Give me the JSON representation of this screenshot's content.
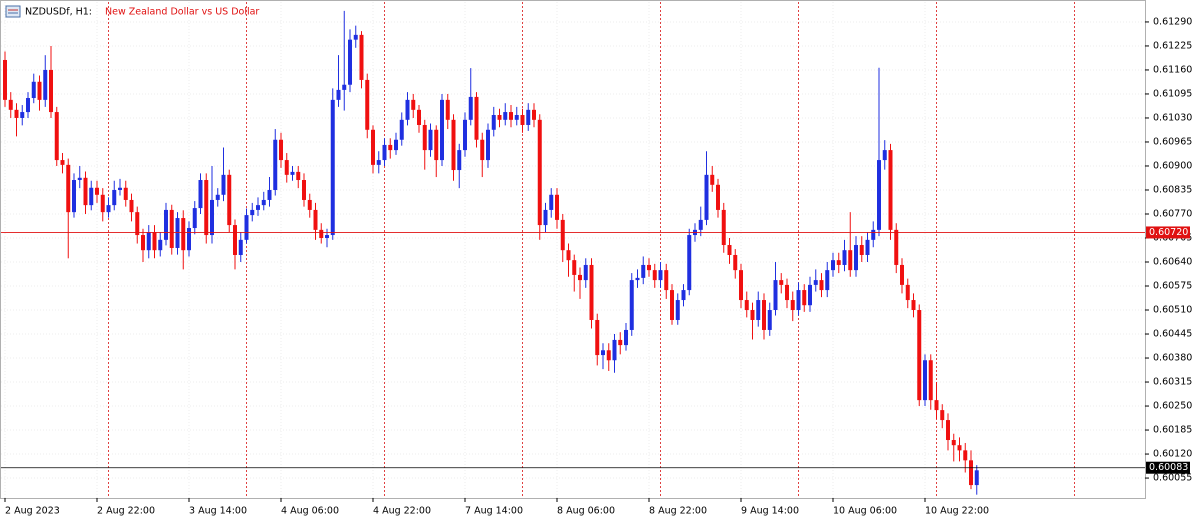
{
  "chart_data": {
    "type": "candlestick",
    "symbol": "NZDUSDf, H1:",
    "title": "New Zealand Dollar vs US Dollar",
    "bull_color": "#1f2fe0",
    "bear_color": "#f01010",
    "grid": true,
    "categories": [
      "2 Aug 2023",
      null,
      null,
      null,
      null,
      null,
      null,
      null,
      null,
      null,
      null,
      null,
      null,
      null,
      null,
      null,
      "2 Aug 22:00",
      null,
      null,
      null,
      null,
      null,
      null,
      null,
      null,
      null,
      null,
      null,
      null,
      null,
      null,
      null,
      "3 Aug 14:00",
      null,
      null,
      null,
      null,
      null,
      null,
      null,
      null,
      null,
      null,
      null,
      null,
      null,
      null,
      null,
      "4 Aug 06:00",
      null,
      null,
      null,
      null,
      null,
      null,
      null,
      null,
      null,
      null,
      null,
      null,
      null,
      null,
      null,
      "4 Aug 22:00",
      null,
      null,
      null,
      null,
      null,
      null,
      null,
      null,
      null,
      null,
      null,
      null,
      null,
      null,
      null,
      "7 Aug 14:00",
      null,
      null,
      null,
      null,
      null,
      null,
      null,
      null,
      null,
      null,
      null,
      null,
      null,
      null,
      null,
      "8 Aug 06:00",
      null,
      null,
      null,
      null,
      null,
      null,
      null,
      null,
      null,
      null,
      null,
      null,
      null,
      null,
      null,
      "8 Aug 22:00",
      null,
      null,
      null,
      null,
      null,
      null,
      null,
      null,
      null,
      null,
      null,
      null,
      null,
      null,
      null,
      "9 Aug 14:00",
      null,
      null,
      null,
      null,
      null,
      null,
      null,
      null,
      null,
      null,
      null,
      null,
      null,
      null,
      null,
      "10 Aug 06:00",
      null,
      null,
      null,
      null,
      null,
      null,
      null,
      null,
      null,
      null,
      null,
      null,
      null,
      null,
      null,
      "10 Aug 22:00",
      null,
      null,
      null,
      null,
      null,
      null,
      null,
      null,
      null
    ],
    "open": [
      0.61187,
      0.61079,
      0.61052,
      0.6103,
      0.61046,
      0.61084,
      0.61128,
      0.61079,
      0.6116,
      0.61046,
      0.60916,
      0.60903,
      0.60775,
      0.60862,
      0.60868,
      0.60794,
      0.60841,
      0.60822,
      0.60775,
      0.60794,
      0.60835,
      0.60841,
      0.60808,
      0.60775,
      0.60713,
      0.60672,
      0.60721,
      0.60672,
      0.607,
      0.60781,
      0.60678,
      0.60759,
      0.60672,
      0.60732,
      0.60786,
      0.60862,
      0.60713,
      0.60808,
      0.60822,
      0.60876,
      0.6074,
      0.60659,
      0.607,
      0.60767,
      0.60781,
      0.60794,
      0.60808,
      0.60835,
      0.60971,
      0.60916,
      0.60876,
      0.60884,
      0.60862,
      0.60808,
      0.60781,
      0.60727,
      0.60705,
      0.60713,
      0.61079,
      0.61106,
      0.6112,
      0.61242,
      0.61255,
      0.61133,
      0.60998,
      0.60903,
      0.60916,
      0.60957,
      0.60943,
      0.60971,
      0.61025,
      0.61079,
      0.61052,
      0.61011,
      0.60943,
      0.60998,
      0.60916,
      0.61079,
      0.61025,
      0.60889,
      0.60943,
      0.61025,
      0.61087,
      0.60971,
      0.60916,
      0.60998,
      0.61038,
      0.61025,
      0.61046,
      0.61025,
      0.61038,
      0.61011,
      0.61052,
      0.61025,
      0.6074,
      0.60781,
      0.60822,
      0.60754,
      0.60672,
      0.60645,
      0.60605,
      0.60591,
      0.60632,
      0.60483,
      0.60388,
      0.60401,
      0.60374,
      0.60429,
      0.60415,
      0.60456,
      0.60591,
      0.60597,
      0.60632,
      0.60618,
      0.60591,
      0.60618,
      0.60564,
      0.60483,
      0.60537,
      0.60564,
      0.60713,
      0.60727,
      0.60754,
      0.60876,
      0.60849,
      0.60781,
      0.60686,
      0.60659,
      0.60618,
      0.60537,
      0.6051,
      0.60483,
      0.60537,
      0.60456,
      0.6051,
      0.60591,
      0.60578,
      0.60537,
      0.6051,
      0.60564,
      0.60523,
      0.60578,
      0.60591,
      0.60564,
      0.60618,
      0.60645,
      0.60632,
      0.60672,
      0.60618,
      0.60686,
      0.60659,
      0.607,
      0.60727,
      0.60916,
      0.60943,
      0.60727,
      0.60632,
      0.60578,
      0.60537,
      0.6051,
      0.60266,
      0.60374,
      0.60266,
      0.60239,
      0.60212,
      0.60158,
      0.60144,
      0.6013,
      0.60103,
      0.60036
    ],
    "high": [
      0.6121,
      0.611,
      0.6107,
      0.61065,
      0.611,
      0.6115,
      0.61145,
      0.612,
      0.61225,
      0.6106,
      0.60935,
      0.6092,
      0.6088,
      0.609,
      0.60885,
      0.6086,
      0.6086,
      0.6084,
      0.60815,
      0.6086,
      0.60865,
      0.6086,
      0.60825,
      0.6079,
      0.6073,
      0.6074,
      0.6074,
      0.6072,
      0.608,
      0.60795,
      0.60775,
      0.6078,
      0.6075,
      0.60805,
      0.6088,
      0.6088,
      0.609,
      0.6084,
      0.6095,
      0.6089,
      0.60755,
      0.6072,
      0.60785,
      0.608,
      0.60815,
      0.6083,
      0.6087,
      0.61,
      0.6099,
      0.60935,
      0.609,
      0.609,
      0.6088,
      0.60825,
      0.608,
      0.60745,
      0.6073,
      0.6111,
      0.612,
      0.6132,
      0.6127,
      0.6128,
      0.61265,
      0.6115,
      0.6101,
      0.6094,
      0.60975,
      0.60975,
      0.6099,
      0.61045,
      0.611,
      0.61095,
      0.61065,
      0.61025,
      0.61015,
      0.6101,
      0.61095,
      0.61095,
      0.6104,
      0.6096,
      0.61045,
      0.61165,
      0.611,
      0.6099,
      0.61015,
      0.6106,
      0.61055,
      0.6107,
      0.61065,
      0.6106,
      0.61055,
      0.6107,
      0.6107,
      0.6104,
      0.608,
      0.6084,
      0.6084,
      0.6077,
      0.6069,
      0.6066,
      0.60625,
      0.6065,
      0.6065,
      0.605,
      0.6042,
      0.6042,
      0.60445,
      0.6045,
      0.60475,
      0.6061,
      0.6062,
      0.60655,
      0.6065,
      0.60635,
      0.6064,
      0.60635,
      0.6058,
      0.60555,
      0.6058,
      0.6073,
      0.60745,
      0.6079,
      0.6094,
      0.609,
      0.60865,
      0.608,
      0.60705,
      0.60675,
      0.60635,
      0.6056,
      0.6053,
      0.6056,
      0.60555,
      0.6053,
      0.6064,
      0.6061,
      0.60595,
      0.6056,
      0.60585,
      0.6058,
      0.606,
      0.6062,
      0.6061,
      0.6064,
      0.60665,
      0.60665,
      0.607,
      0.60775,
      0.6071,
      0.6071,
      0.6072,
      0.6075,
      0.61166,
      0.6097,
      0.6096,
      0.60745,
      0.6065,
      0.60595,
      0.60555,
      0.60525,
      0.6039,
      0.6039,
      0.60315,
      0.60255,
      0.6023,
      0.60175,
      0.60165,
      0.6015,
      0.6013,
      0.6009
    ],
    "low": [
      0.6106,
      0.6103,
      0.6098,
      0.6101,
      0.6103,
      0.6107,
      0.6105,
      0.6106,
      0.6103,
      0.609,
      0.6088,
      0.6065,
      0.6076,
      0.6084,
      0.6077,
      0.6078,
      0.608,
      0.6075,
      0.6076,
      0.6078,
      0.6082,
      0.6079,
      0.6075,
      0.6069,
      0.6064,
      0.6065,
      0.6065,
      0.60655,
      0.60685,
      0.6066,
      0.6066,
      0.6062,
      0.60655,
      0.60715,
      0.6077,
      0.6069,
      0.6069,
      0.6079,
      0.60805,
      0.6072,
      0.6062,
      0.6064,
      0.6069,
      0.6075,
      0.60765,
      0.6078,
      0.6079,
      0.6082,
      0.60895,
      0.60855,
      0.6086,
      0.6084,
      0.6079,
      0.6076,
      0.607,
      0.6069,
      0.6068,
      0.607,
      0.6106,
      0.6105,
      0.611,
      0.6122,
      0.6111,
      0.60975,
      0.6088,
      0.6088,
      0.609,
      0.6092,
      0.6093,
      0.60955,
      0.6101,
      0.6103,
      0.6099,
      0.6089,
      0.60925,
      0.6087,
      0.609,
      0.61,
      0.6086,
      0.6084,
      0.60925,
      0.6101,
      0.6095,
      0.6087,
      0.60895,
      0.6098,
      0.61005,
      0.6101,
      0.61005,
      0.6101,
      0.6099,
      0.60995,
      0.61005,
      0.607,
      0.6072,
      0.6076,
      0.6073,
      0.6064,
      0.606,
      0.6056,
      0.6054,
      0.6057,
      0.6046,
      0.6036,
      0.6035,
      0.60345,
      0.6034,
      0.6039,
      0.604,
      0.6044,
      0.6057,
      0.6058,
      0.606,
      0.6057,
      0.6057,
      0.6054,
      0.6047,
      0.6047,
      0.6052,
      0.6055,
      0.60695,
      0.6071,
      0.6074,
      0.6083,
      0.6076,
      0.60665,
      0.60635,
      0.60595,
      0.60515,
      0.6049,
      0.6043,
      0.60465,
      0.6043,
      0.6044,
      0.60495,
      0.60555,
      0.60515,
      0.6048,
      0.60495,
      0.60505,
      0.60505,
      0.6056,
      0.60545,
      0.60545,
      0.606,
      0.6061,
      0.60615,
      0.606,
      0.606,
      0.6064,
      0.6064,
      0.6068,
      0.6071,
      0.6089,
      0.607,
      0.6061,
      0.60555,
      0.60515,
      0.6049,
      0.6025,
      0.6025,
      0.6024,
      0.60215,
      0.6019,
      0.6013,
      0.601,
      0.601,
      0.6007,
      0.60025,
      0.6001
    ],
    "close": [
      0.61079,
      0.61052,
      0.6103,
      0.61046,
      0.61084,
      0.61128,
      0.61079,
      0.6116,
      0.61046,
      0.60916,
      0.60903,
      0.60775,
      0.60862,
      0.60868,
      0.60794,
      0.60841,
      0.60822,
      0.60775,
      0.60794,
      0.60835,
      0.60841,
      0.60808,
      0.60775,
      0.60713,
      0.60672,
      0.60721,
      0.60672,
      0.607,
      0.60781,
      0.60678,
      0.60759,
      0.60672,
      0.60732,
      0.60786,
      0.60862,
      0.60713,
      0.60808,
      0.60822,
      0.60876,
      0.6074,
      0.60659,
      0.607,
      0.60767,
      0.60781,
      0.60794,
      0.60808,
      0.60835,
      0.60971,
      0.60916,
      0.60876,
      0.60884,
      0.60862,
      0.60808,
      0.60781,
      0.60727,
      0.60705,
      0.60713,
      0.61079,
      0.61106,
      0.6112,
      0.61242,
      0.61255,
      0.61133,
      0.60998,
      0.60903,
      0.60916,
      0.60957,
      0.60943,
      0.60971,
      0.61025,
      0.61079,
      0.61052,
      0.61011,
      0.60943,
      0.60998,
      0.60916,
      0.61079,
      0.61025,
      0.60889,
      0.60943,
      0.61025,
      0.61087,
      0.60971,
      0.60916,
      0.60998,
      0.61038,
      0.61025,
      0.61046,
      0.61025,
      0.61038,
      0.61011,
      0.61052,
      0.61025,
      0.6074,
      0.60781,
      0.60822,
      0.60754,
      0.60672,
      0.60645,
      0.60605,
      0.60591,
      0.60632,
      0.60483,
      0.60388,
      0.60401,
      0.60374,
      0.60429,
      0.60415,
      0.60456,
      0.60591,
      0.60597,
      0.60632,
      0.60618,
      0.60591,
      0.60618,
      0.60564,
      0.60483,
      0.60537,
      0.60564,
      0.60713,
      0.60727,
      0.60754,
      0.60876,
      0.60849,
      0.60781,
      0.60686,
      0.60659,
      0.60618,
      0.60537,
      0.6051,
      0.60483,
      0.60537,
      0.60456,
      0.6051,
      0.60591,
      0.60578,
      0.60537,
      0.6051,
      0.60564,
      0.60523,
      0.60578,
      0.60591,
      0.60564,
      0.60618,
      0.60645,
      0.60632,
      0.60672,
      0.60618,
      0.60686,
      0.60659,
      0.607,
      0.60727,
      0.60916,
      0.60943,
      0.60727,
      0.60632,
      0.60578,
      0.60537,
      0.6051,
      0.60266,
      0.60374,
      0.60266,
      0.60239,
      0.60212,
      0.60158,
      0.60144,
      0.6013,
      0.60103,
      0.60036,
      0.60076
    ],
    "ylim": [
      0.60001,
      0.61344
    ],
    "yticks": [
      {
        "value": 0.6129,
        "label": "0.61290"
      },
      {
        "value": 0.61225,
        "label": "0.61225"
      },
      {
        "value": 0.6116,
        "label": "0.61160"
      },
      {
        "value": 0.61095,
        "label": "0.61095"
      },
      {
        "value": 0.6103,
        "label": "0.61030"
      },
      {
        "value": 0.60965,
        "label": "0.60965"
      },
      {
        "value": 0.609,
        "label": "0.60900"
      },
      {
        "value": 0.60835,
        "label": "0.60835"
      },
      {
        "value": 0.6077,
        "label": "0.60770"
      },
      {
        "value": 0.60705,
        "label": "0.60705"
      },
      {
        "value": 0.6064,
        "label": "0.60640"
      },
      {
        "value": 0.60575,
        "label": "0.60575"
      },
      {
        "value": 0.6051,
        "label": "0.60510"
      },
      {
        "value": 0.60445,
        "label": "0.60445"
      },
      {
        "value": 0.6038,
        "label": "0.60380"
      },
      {
        "value": 0.60315,
        "label": "0.60315"
      },
      {
        "value": 0.6025,
        "label": "0.60250"
      },
      {
        "value": 0.60185,
        "label": "0.60185"
      },
      {
        "value": 0.6012,
        "label": "0.60120"
      },
      {
        "value": 0.60055,
        "label": "0.60055"
      }
    ],
    "price_lines": [
      {
        "value": 0.6072,
        "label": "0.60720",
        "color": "#e01010"
      },
      {
        "value": 0.60083,
        "label": "0.60083",
        "color": "#000000"
      }
    ]
  }
}
